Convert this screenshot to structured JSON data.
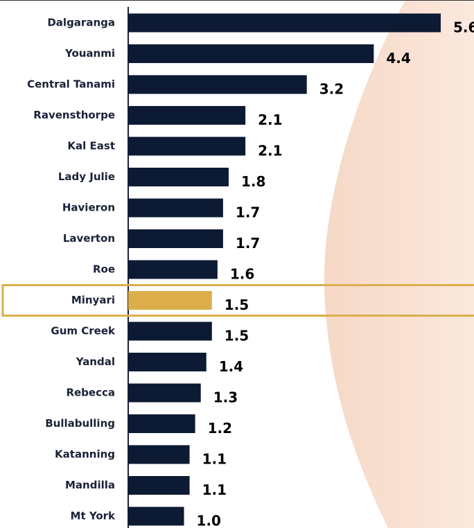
{
  "chart_data": {
    "type": "bar",
    "orientation": "horizontal",
    "categories": [
      "Dalgaranga",
      "Youanmi",
      "Central Tanami",
      "Ravensthorpe",
      "Kal East",
      "Lady Julie",
      "Havieron",
      "Laverton",
      "Roe",
      "Minyari",
      "Gum Creek",
      "Yandal",
      "Rebecca",
      "Bullabulling",
      "Katanning",
      "Mandilla",
      "Mt York"
    ],
    "values": [
      5.6,
      4.4,
      3.2,
      2.1,
      2.1,
      1.8,
      1.7,
      1.7,
      1.6,
      1.5,
      1.5,
      1.4,
      1.3,
      1.2,
      1.1,
      1.1,
      1.0
    ],
    "value_labels": [
      "5.6",
      "4.4",
      "3.2",
      "2.1",
      "2.1",
      "1.8",
      "1.7",
      "1.7",
      "1.6",
      "1.5",
      "1.5",
      "1.4",
      "1.3",
      "1.2",
      "1.1",
      "1.1",
      "1.0"
    ],
    "color": "#0d1a33",
    "highlight": "Minyari",
    "highlight_color": "#dcae4a"
  }
}
